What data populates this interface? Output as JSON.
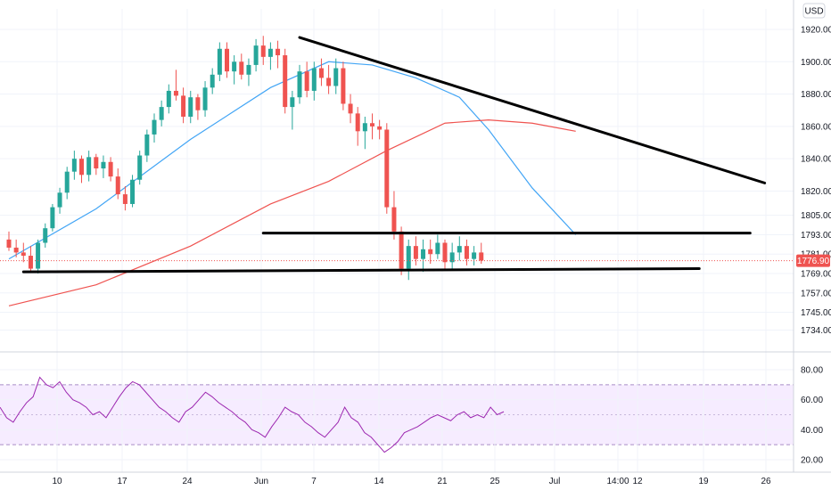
{
  "chart_data": [
    {
      "type": "candlestick",
      "currency": "USD",
      "current_price": "1776.90",
      "y_ticks": [
        "1920.00",
        "1900.00",
        "1880.00",
        "1860.00",
        "1840.00",
        "1820.00",
        "1805.00",
        "1793.00",
        "1781.00",
        "1769.00",
        "1757.00",
        "1745.00",
        "1734.00"
      ],
      "x_ticks": [
        "10",
        "17",
        "24",
        "Jun",
        "7",
        "14",
        "21",
        "25",
        "Jul",
        "14:00",
        "12",
        "19",
        "26"
      ],
      "candles": [
        [
          1790,
          1795,
          1783,
          1785
        ],
        [
          1785,
          1790,
          1779,
          1782
        ],
        [
          1782,
          1788,
          1776,
          1780
        ],
        [
          1780,
          1786,
          1770,
          1772
        ],
        [
          1772,
          1790,
          1769,
          1788
        ],
        [
          1788,
          1800,
          1785,
          1797
        ],
        [
          1797,
          1812,
          1795,
          1810
        ],
        [
          1810,
          1822,
          1806,
          1819
        ],
        [
          1819,
          1835,
          1815,
          1832
        ],
        [
          1832,
          1845,
          1827,
          1840
        ],
        [
          1840,
          1842,
          1825,
          1830
        ],
        [
          1830,
          1845,
          1826,
          1841
        ],
        [
          1841,
          1843,
          1830,
          1834
        ],
        [
          1834,
          1842,
          1828,
          1838
        ],
        [
          1838,
          1841,
          1826,
          1829
        ],
        [
          1829,
          1834,
          1815,
          1818
        ],
        [
          1818,
          1823,
          1808,
          1812
        ],
        [
          1812,
          1830,
          1810,
          1827
        ],
        [
          1827,
          1845,
          1824,
          1842
        ],
        [
          1842,
          1858,
          1838,
          1855
        ],
        [
          1855,
          1868,
          1850,
          1864
        ],
        [
          1864,
          1876,
          1860,
          1872
        ],
        [
          1872,
          1886,
          1868,
          1882
        ],
        [
          1882,
          1895,
          1876,
          1879
        ],
        [
          1879,
          1884,
          1862,
          1866
        ],
        [
          1866,
          1882,
          1862,
          1878
        ],
        [
          1878,
          1880,
          1864,
          1870
        ],
        [
          1870,
          1888,
          1866,
          1884
        ],
        [
          1884,
          1896,
          1880,
          1892
        ],
        [
          1892,
          1912,
          1888,
          1908
        ],
        [
          1908,
          1912,
          1890,
          1894
        ],
        [
          1894,
          1904,
          1886,
          1900
        ],
        [
          1900,
          1905,
          1889,
          1892
        ],
        [
          1892,
          1902,
          1885,
          1898
        ],
        [
          1898,
          1914,
          1894,
          1910
        ],
        [
          1910,
          1916,
          1898,
          1903
        ],
        [
          1903,
          1912,
          1895,
          1908
        ],
        [
          1908,
          1913,
          1896,
          1904
        ],
        [
          1904,
          1908,
          1868,
          1872
        ],
        [
          1872,
          1882,
          1858,
          1878
        ],
        [
          1878,
          1898,
          1874,
          1894
        ],
        [
          1894,
          1900,
          1878,
          1882
        ],
        [
          1882,
          1900,
          1876,
          1896
        ],
        [
          1896,
          1902,
          1885,
          1890
        ],
        [
          1890,
          1898,
          1880,
          1885
        ],
        [
          1885,
          1902,
          1880,
          1896
        ],
        [
          1896,
          1900,
          1870,
          1874
        ],
        [
          1874,
          1880,
          1862,
          1868
        ],
        [
          1868,
          1872,
          1848,
          1857
        ],
        [
          1857,
          1866,
          1846,
          1862
        ],
        [
          1862,
          1868,
          1852,
          1860
        ],
        [
          1860,
          1864,
          1852,
          1858
        ],
        [
          1858,
          1862,
          1806,
          1810
        ],
        [
          1810,
          1820,
          1790,
          1795
        ],
        [
          1795,
          1798,
          1768,
          1772
        ],
        [
          1772,
          1790,
          1765,
          1786
        ],
        [
          1786,
          1792,
          1774,
          1778
        ],
        [
          1778,
          1790,
          1770,
          1784
        ],
        [
          1784,
          1790,
          1775,
          1781
        ],
        [
          1781,
          1793,
          1778,
          1788
        ],
        [
          1788,
          1790,
          1772,
          1776
        ],
        [
          1776,
          1788,
          1772,
          1782
        ],
        [
          1782,
          1792,
          1777,
          1786
        ],
        [
          1786,
          1790,
          1774,
          1778
        ],
        [
          1778,
          1786,
          1774,
          1782
        ],
        [
          1782,
          1788,
          1775,
          1777
        ]
      ],
      "ma_fast": [
        [
          0,
          1778
        ],
        [
          12,
          1809
        ],
        [
          25,
          1852
        ],
        [
          36,
          1884
        ],
        [
          44,
          1900
        ],
        [
          50,
          1898
        ],
        [
          56,
          1890
        ],
        [
          62,
          1878
        ],
        [
          66,
          1858
        ],
        [
          72,
          1822
        ],
        [
          78,
          1793
        ]
      ],
      "ma_slow": [
        [
          0,
          1749
        ],
        [
          12,
          1762
        ],
        [
          25,
          1786
        ],
        [
          36,
          1812
        ],
        [
          44,
          1826
        ],
        [
          52,
          1845
        ],
        [
          60,
          1862
        ],
        [
          66,
          1864
        ],
        [
          72,
          1862
        ],
        [
          78,
          1857
        ]
      ],
      "trendlines": [
        {
          "from": [
            40,
            1915
          ],
          "to": [
            104,
            1825
          ]
        },
        {
          "from": [
            35,
            1794
          ],
          "to": [
            102,
            1794
          ]
        },
        {
          "from": [
            2,
            1770
          ],
          "to": [
            95,
            1772
          ]
        }
      ]
    },
    {
      "type": "line",
      "indicator": "RSI",
      "y_ticks": [
        "80.00",
        "60.00",
        "40.00",
        "20.00"
      ],
      "band": [
        30,
        70
      ],
      "values": [
        55,
        48,
        45,
        52,
        58,
        62,
        75,
        70,
        68,
        72,
        65,
        60,
        58,
        55,
        50,
        52,
        48,
        55,
        62,
        68,
        72,
        70,
        65,
        60,
        55,
        52,
        48,
        45,
        52,
        55,
        60,
        65,
        62,
        58,
        55,
        52,
        48,
        45,
        40,
        38,
        35,
        42,
        48,
        55,
        52,
        50,
        45,
        42,
        38,
        35,
        40,
        45,
        55,
        48,
        45,
        38,
        35,
        30,
        25,
        28,
        32,
        38,
        40,
        42,
        45,
        48,
        50,
        48,
        46,
        50,
        52,
        48,
        50,
        48,
        55,
        50,
        52
      ]
    }
  ]
}
